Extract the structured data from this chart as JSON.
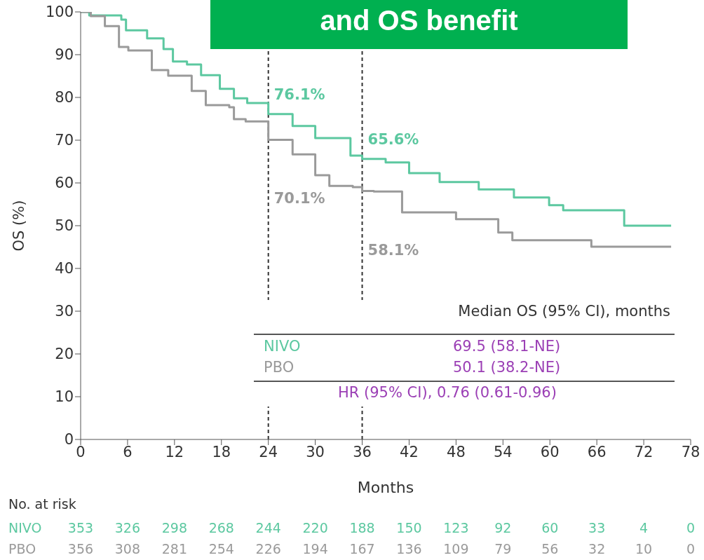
{
  "chart_data": {
    "type": "step",
    "title": "and OS benefit",
    "xlabel": "Months",
    "ylabel": "OS (%)",
    "xlim": [
      0,
      78
    ],
    "xticks": [
      0,
      6,
      12,
      18,
      24,
      30,
      36,
      42,
      48,
      54,
      60,
      66,
      72,
      78
    ],
    "ylim": [
      0,
      100
    ],
    "yticks": [
      0,
      10,
      20,
      30,
      40,
      50,
      60,
      70,
      80,
      90,
      100
    ],
    "grid": false,
    "legend": false,
    "marker": "none",
    "line_style": "solid",
    "series": [
      {
        "name": "NIVO",
        "color": "#5cc8a0",
        "x": [
          0,
          1.1,
          5.2,
          5.8,
          8.5,
          10.6,
          11.8,
          13.6,
          15.4,
          17.8,
          19.6,
          21.3,
          24,
          27.1,
          30,
          34.5,
          36,
          39,
          42,
          45.9,
          50.9,
          55.4,
          59.9,
          61.7,
          69.5,
          75.5
        ],
        "values": [
          100,
          99.2,
          98.2,
          95.7,
          93.8,
          91.3,
          88.4,
          87.7,
          85.2,
          82,
          79.8,
          78.7,
          76.1,
          73.3,
          70.5,
          66.4,
          65.6,
          64.8,
          62.3,
          60.2,
          58.5,
          56.6,
          54.8,
          53.6,
          50,
          50
        ]
      },
      {
        "name": "PBO",
        "color": "#9a9a9a",
        "x": [
          0,
          1.3,
          3.1,
          4.9,
          6.1,
          9.1,
          11.2,
          14.2,
          16,
          19,
          19.6,
          21.1,
          24,
          27.1,
          30,
          31.8,
          34.8,
          36,
          37.5,
          41.1,
          48,
          53.4,
          55.2,
          65.3,
          75.5
        ],
        "values": [
          100,
          99,
          96.7,
          91.8,
          91,
          86.4,
          85.1,
          81.5,
          78.2,
          77.7,
          74.9,
          74.4,
          70.1,
          66.7,
          61.8,
          59.3,
          59,
          58.1,
          58,
          53.1,
          51.5,
          48.4,
          46.6,
          45.1,
          45.1
        ]
      }
    ],
    "ref_lines": [
      {
        "axis": "x",
        "value": 24,
        "line_style": "dashed",
        "color": "#333333"
      },
      {
        "axis": "x",
        "value": 36,
        "line_style": "dashed",
        "color": "#333333"
      }
    ],
    "annotations": [
      {
        "text": "76.1%",
        "x": 24,
        "y": 76.1
      },
      "70.1%",
      {
        "text": "65.6%",
        "x": 36,
        "y": 65.6
      },
      "58.1%",
      "Median OS (95% CI), months",
      "69.5 (58.1-NE)",
      "50.1 (38.2-NE)",
      "HR (95% CI), 0.76 (0.61-0.96)",
      "No. at risk",
      "353",
      "326",
      "298",
      "268",
      "244",
      "220",
      "188",
      "150",
      "123",
      "92",
      "60",
      "33",
      "4",
      "0",
      "356",
      "308",
      "281",
      "254",
      "226",
      "194",
      "167",
      "136",
      "109",
      "79",
      "56",
      "32",
      "10",
      "0"
    ]
  }
}
